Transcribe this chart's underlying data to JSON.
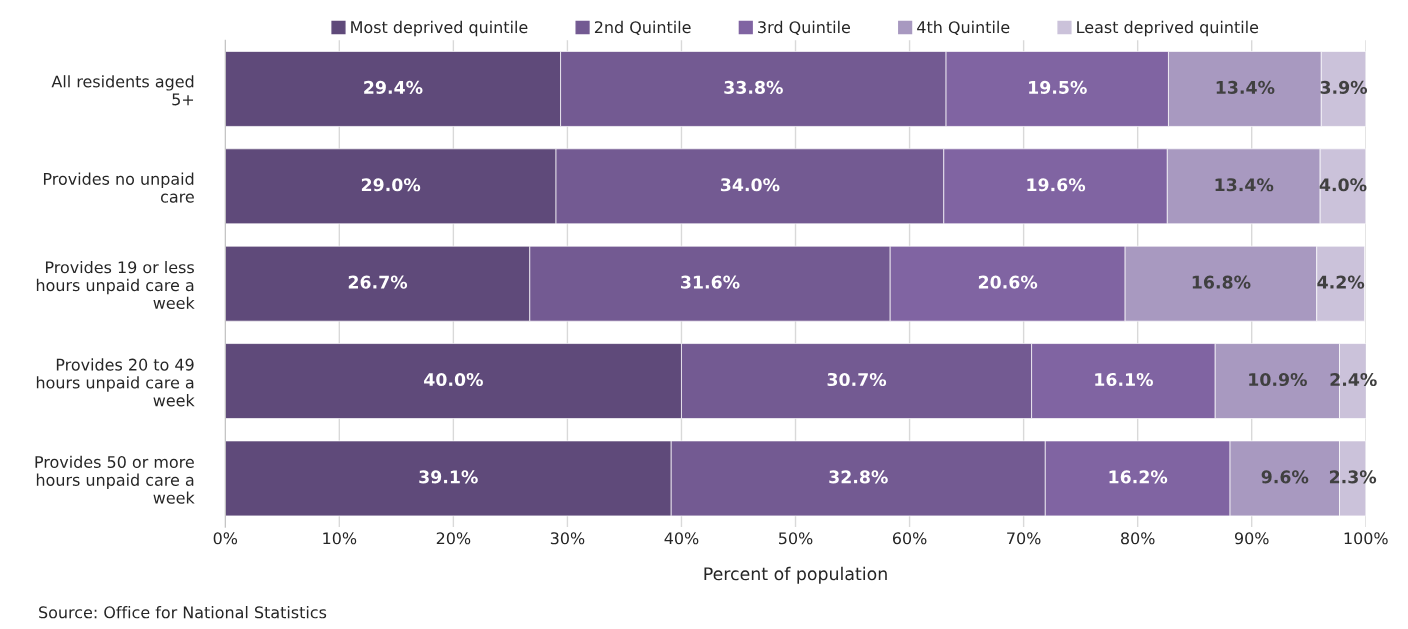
{
  "chart_data": {
    "type": "bar",
    "orientation": "horizontal",
    "stacked": true,
    "categories": [
      "All residents aged 5+",
      "Provides no unpaid care",
      "Provides 19 or less hours unpaid care a week",
      "Provides 20 to 49 hours unpaid care a week",
      "Provides 50 or more hours unpaid care a week"
    ],
    "series": [
      {
        "name": "Most deprived quintile",
        "color": "#5f4a7a",
        "values": [
          29.4,
          29.0,
          26.7,
          40.0,
          39.1
        ],
        "value_labels": [
          "29.4%",
          "29.0%",
          "26.7%",
          "40.0%",
          "39.1%"
        ]
      },
      {
        "name": "2nd Quintile",
        "color": "#735a92",
        "values": [
          33.8,
          34.0,
          31.6,
          30.7,
          32.8
        ],
        "value_labels": [
          "33.8%",
          "34.0%",
          "31.6%",
          "30.7%",
          "32.8%"
        ]
      },
      {
        "name": "3rd Quintile",
        "color": "#8064a2",
        "values": [
          19.5,
          19.6,
          20.6,
          16.1,
          16.2
        ],
        "value_labels": [
          "19.5%",
          "19.6%",
          "20.6%",
          "16.1%",
          "16.2%"
        ]
      },
      {
        "name": "4th Quintile",
        "color": "#a899c0",
        "values": [
          13.4,
          13.4,
          16.8,
          10.9,
          9.6
        ],
        "value_labels": [
          "13.4%",
          "13.4%",
          "16.8%",
          "10.9%",
          "9.6%"
        ]
      },
      {
        "name": "Least deprived quintile",
        "color": "#cbc2da",
        "values": [
          3.9,
          4.0,
          4.2,
          2.4,
          2.3
        ],
        "value_labels": [
          "3.9%",
          "4.0%",
          "4.2%",
          "2.4%",
          "2.3%"
        ]
      }
    ],
    "xlim": [
      0,
      100
    ],
    "xticks": [
      {
        "value": 0,
        "label": "0%"
      },
      {
        "value": 10,
        "label": "10%"
      },
      {
        "value": 20,
        "label": "20%"
      },
      {
        "value": 30,
        "label": "30%"
      },
      {
        "value": 40,
        "label": "40%"
      },
      {
        "value": 50,
        "label": "50%"
      },
      {
        "value": 60,
        "label": "60%"
      },
      {
        "value": 70,
        "label": "70%"
      },
      {
        "value": 80,
        "label": "80%"
      },
      {
        "value": 90,
        "label": "90%"
      },
      {
        "value": 100,
        "label": "100%"
      }
    ],
    "xlabel": "Percent of population",
    "annotations": [
      "Source: Office for National Statistics"
    ],
    "grid": "x",
    "legend": "top"
  }
}
